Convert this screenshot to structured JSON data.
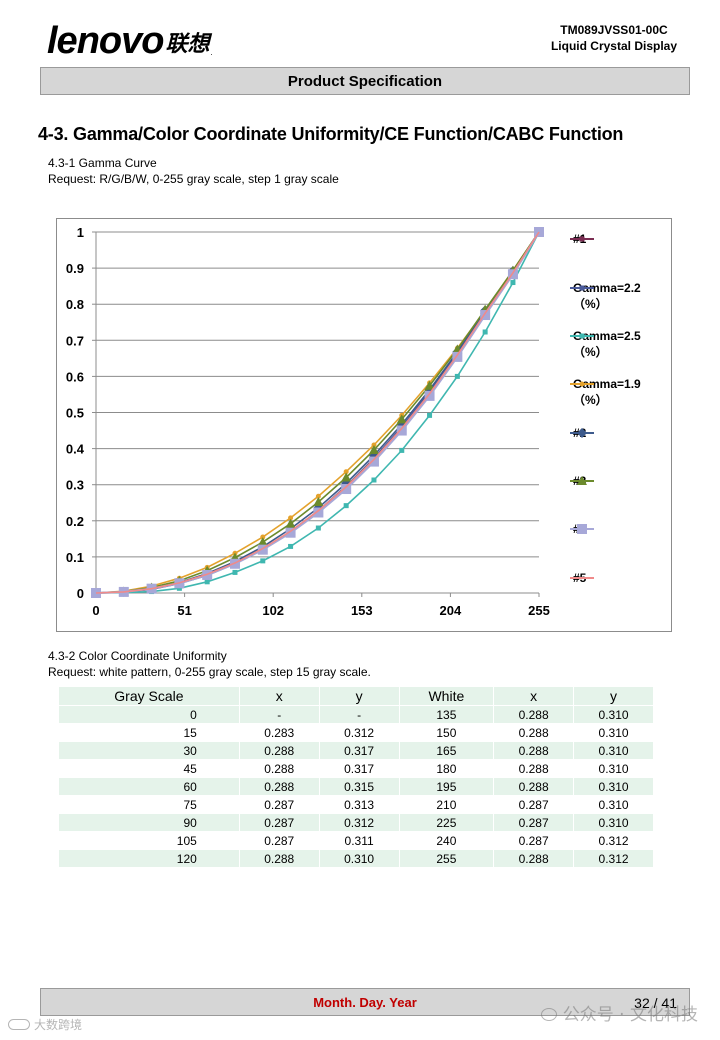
{
  "header": {
    "brand_latin": "lenovo",
    "brand_cn": "联想",
    "brand_dot": ".",
    "doc_number": "TM089JVSS01-00C",
    "doc_subtitle": "Liquid Crystal Display",
    "bar_title": "Product Specification"
  },
  "section": {
    "title": "4-3. Gamma/Color Coordinate Uniformity/CE Function/CABC Function",
    "gamma_heading": "4.3-1 Gamma Curve",
    "gamma_request": "Request: R/G/B/W, 0-255 gray scale, step 1 gray scale",
    "cc_heading": "4.3-2 Color Coordinate Uniformity",
    "cc_request": "Request: white pattern, 0-255 gray scale, step 15 gray scale."
  },
  "chart_data": {
    "type": "line",
    "title": "",
    "xlabel": "",
    "ylabel": "",
    "xlim": [
      0,
      255
    ],
    "ylim": [
      0,
      1
    ],
    "x_ticks": [
      0,
      51,
      102,
      153,
      204,
      255
    ],
    "x_tick_labels": [
      "0",
      "51",
      "102",
      "153",
      "204",
      "255"
    ],
    "y_ticks": [
      0,
      0.1,
      0.2,
      0.3,
      0.4,
      0.5,
      0.6,
      0.7,
      0.8,
      0.9,
      1
    ],
    "y_tick_labels": [
      "0",
      "0.1",
      "0.2",
      "0.3",
      "0.4",
      "0.5",
      "0.6",
      "0.7",
      "0.8",
      "0.9",
      "1"
    ],
    "grid": "horizontal",
    "legend_position": "right",
    "x": [
      0,
      16,
      32,
      48,
      64,
      80,
      96,
      112,
      128,
      144,
      160,
      176,
      192,
      208,
      224,
      240,
      255
    ],
    "series": [
      {
        "name": "#1",
        "color": "#7b2d52",
        "marker": "square-small",
        "values": [
          0,
          0.003,
          0.011,
          0.027,
          0.05,
          0.081,
          0.121,
          0.169,
          0.226,
          0.293,
          0.37,
          0.457,
          0.554,
          0.661,
          0.779,
          0.89,
          1.0
        ]
      },
      {
        "name": "Gamma=2.2（%）",
        "color": "#4a5a9a",
        "marker": "square-small",
        "values": [
          0,
          0.002,
          0.01,
          0.026,
          0.049,
          0.081,
          0.121,
          0.17,
          0.228,
          0.296,
          0.373,
          0.46,
          0.557,
          0.664,
          0.781,
          0.892,
          1.0
        ]
      },
      {
        "name": "Gamma=2.5（%）",
        "color": "#3fb7b0",
        "marker": "square-small",
        "values": [
          0,
          0.001,
          0.004,
          0.013,
          0.031,
          0.057,
          0.089,
          0.129,
          0.18,
          0.242,
          0.313,
          0.395,
          0.492,
          0.6,
          0.723,
          0.86,
          1.0
        ]
      },
      {
        "name": "Gamma=1.9（%）",
        "color": "#e4a22c",
        "marker": "dot",
        "values": [
          0,
          0.005,
          0.019,
          0.041,
          0.071,
          0.11,
          0.155,
          0.208,
          0.268,
          0.336,
          0.41,
          0.492,
          0.582,
          0.678,
          0.782,
          0.894,
          1.0
        ]
      },
      {
        "name": "#2",
        "color": "#3d5a8c",
        "marker": "diamond",
        "values": [
          0,
          0.003,
          0.012,
          0.029,
          0.054,
          0.087,
          0.128,
          0.178,
          0.236,
          0.304,
          0.381,
          0.467,
          0.563,
          0.668,
          0.783,
          0.892,
          1.0
        ]
      },
      {
        "name": "#3",
        "color": "#6b8a2c",
        "marker": "triangle",
        "values": [
          0,
          0.004,
          0.015,
          0.034,
          0.062,
          0.098,
          0.141,
          0.192,
          0.252,
          0.32,
          0.396,
          0.481,
          0.574,
          0.675,
          0.785,
          0.893,
          1.0
        ]
      },
      {
        "name": "#4",
        "color": "#a7a8d8",
        "marker": "square-large",
        "values": [
          0,
          0.003,
          0.012,
          0.027,
          0.05,
          0.081,
          0.12,
          0.167,
          0.223,
          0.288,
          0.364,
          0.45,
          0.546,
          0.654,
          0.77,
          0.883,
          1.0
        ]
      },
      {
        "name": "#5",
        "color": "#f08a8a",
        "marker": "none",
        "values": [
          0,
          0.003,
          0.012,
          0.028,
          0.052,
          0.083,
          0.123,
          0.171,
          0.228,
          0.294,
          0.37,
          0.456,
          0.552,
          0.659,
          0.775,
          0.887,
          1.0
        ]
      }
    ]
  },
  "cc_table": {
    "headers": [
      "Gray Scale",
      "x",
      "y",
      "White",
      "x",
      "y"
    ],
    "rows": [
      [
        "0",
        "-",
        "-",
        "135",
        "0.288",
        "0.310"
      ],
      [
        "15",
        "0.283",
        "0.312",
        "150",
        "0.288",
        "0.310"
      ],
      [
        "30",
        "0.288",
        "0.317",
        "165",
        "0.288",
        "0.310"
      ],
      [
        "45",
        "0.288",
        "0.317",
        "180",
        "0.288",
        "0.310"
      ],
      [
        "60",
        "0.288",
        "0.315",
        "195",
        "0.288",
        "0.310"
      ],
      [
        "75",
        "0.287",
        "0.313",
        "210",
        "0.287",
        "0.310"
      ],
      [
        "90",
        "0.287",
        "0.312",
        "225",
        "0.287",
        "0.310"
      ],
      [
        "105",
        "0.287",
        "0.311",
        "240",
        "0.287",
        "0.312"
      ],
      [
        "120",
        "0.288",
        "0.310",
        "255",
        "0.288",
        "0.312"
      ]
    ]
  },
  "footer": {
    "date_text": "Month. Day. Year",
    "page_text": "32 / 41",
    "watermark_right": "公众号 · 文化科技",
    "watermark_left": "大数跨境"
  }
}
